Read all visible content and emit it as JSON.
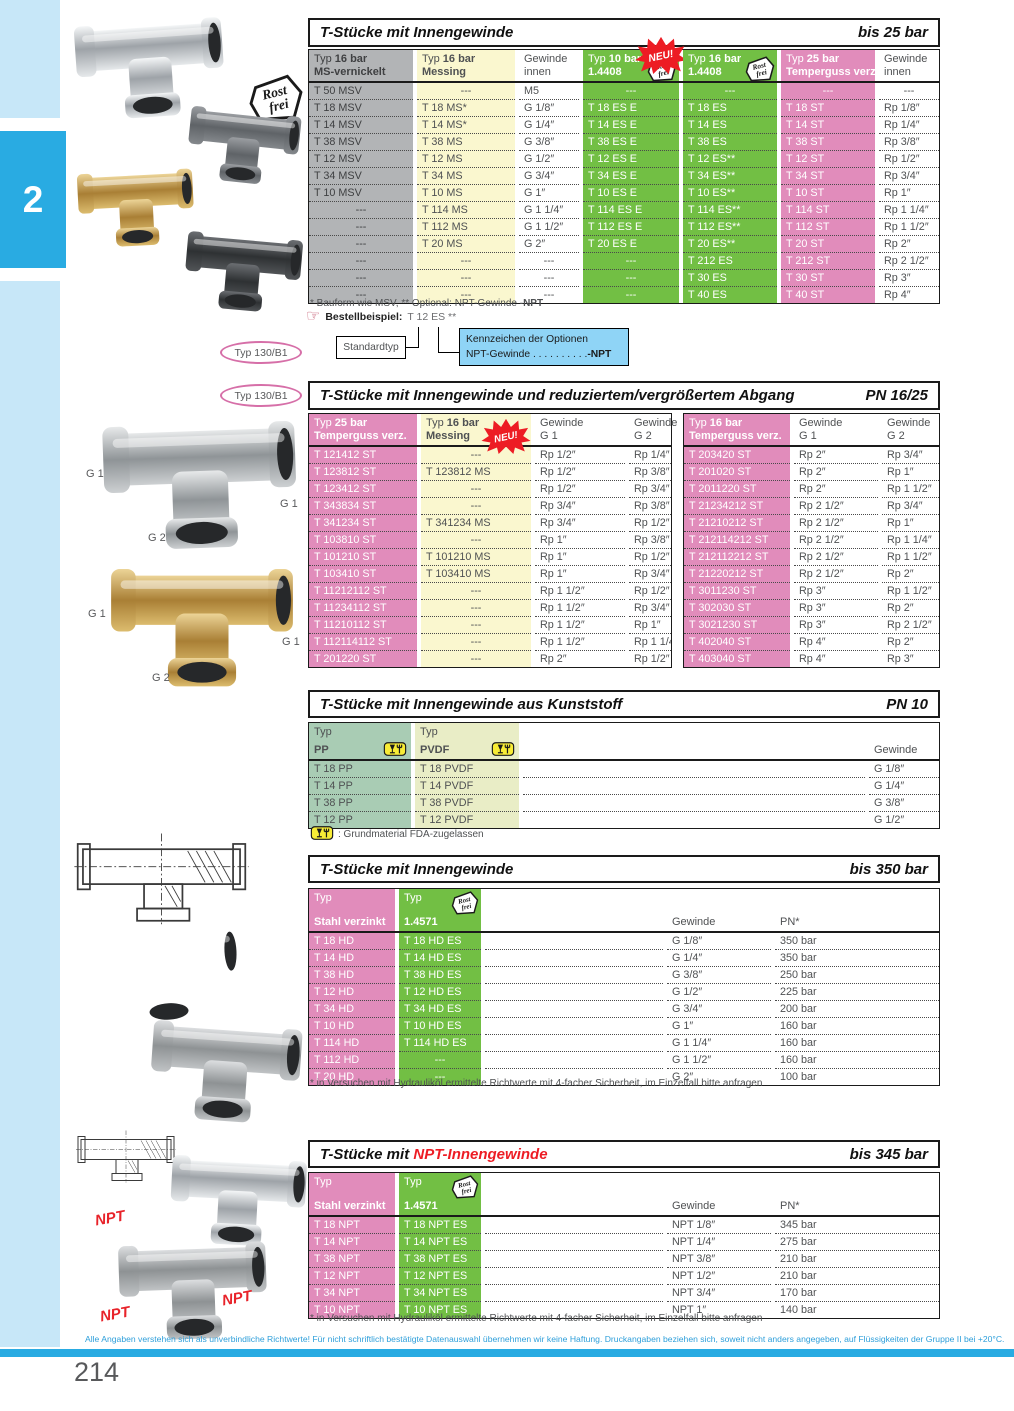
{
  "page": {
    "chapter_tab": "2",
    "number": "214",
    "disclaimer": "Alle Angaben verstehen sich als unverbindliche Richtwerte! Für nicht schriftlich bestätigte Datenauswahl übernehmen wir keine Haftung. Druckangaben beziehen sich, soweit nicht anders angegeben, auf Flüssigkeiten der Gruppe II bei +20°C."
  },
  "labels": {
    "typ_badge": "Typ 130/B1",
    "g1": "G 1",
    "g2": "G 2",
    "npt": "NPT",
    "rostfrei_1": "Rost",
    "rostfrei_2": "frei",
    "neu": "NEU!"
  },
  "sections": {
    "bis25": {
      "title": "T-Stücke mit Innengewinde",
      "pressure": "bis 25 bar",
      "columns": [
        {
          "t": "Typ",
          "r": "16 bar",
          "m": "MS-vernickelt"
        },
        {
          "t": "Typ",
          "r": "16 bar",
          "m": "Messing"
        },
        {
          "l1": "Gewinde",
          "l2": "innen"
        },
        {
          "t": "Typ",
          "r": "10 bar",
          "m": "1.4408"
        },
        {
          "t": "Typ",
          "r": "16 bar",
          "m": "1.4408"
        },
        {
          "t": "Typ",
          "r": "25 bar",
          "m": "Temperguss verz."
        },
        {
          "l1": "Gewinde",
          "l2": "innen"
        }
      ],
      "rows": [
        [
          "T 50 MSV",
          "---",
          "M5",
          "---",
          "---",
          "---",
          "---"
        ],
        [
          "T 18 MSV",
          "T 18 MS*",
          "G 1/8″",
          "T 18 ES E",
          "T 18 ES",
          "T 18 ST",
          "Rp 1/8″"
        ],
        [
          "T 14 MSV",
          "T 14 MS*",
          "G 1/4″",
          "T 14 ES E",
          "T 14 ES",
          "T 14 ST",
          "Rp 1/4″"
        ],
        [
          "T 38 MSV",
          "T 38 MS",
          "G 3/8″",
          "T 38 ES E",
          "T 38 ES",
          "T 38 ST",
          "Rp 3/8″"
        ],
        [
          "T 12 MSV",
          "T 12 MS",
          "G 1/2″",
          "T 12 ES E",
          "T 12 ES**",
          "T 12 ST",
          "Rp 1/2″"
        ],
        [
          "T 34 MSV",
          "T 34 MS",
          "G 3/4″",
          "T 34 ES E",
          "T 34 ES**",
          "T 34 ST",
          "Rp 3/4″"
        ],
        [
          "T 10 MSV",
          "T 10 MS",
          "G 1″",
          "T 10 ES E",
          "T 10 ES**",
          "T 10 ST",
          "Rp 1″"
        ],
        [
          "---",
          "T 114 MS",
          "G 1 1/4″",
          "T 114 ES E",
          "T 114 ES**",
          "T 114 ST",
          "Rp 1 1/4″"
        ],
        [
          "---",
          "T 112 MS",
          "G 1 1/2″",
          "T 112 ES E",
          "T 112 ES**",
          "T 112 ST",
          "Rp 1 1/2″"
        ],
        [
          "---",
          "T 20 MS",
          "G 2″",
          "T 20 ES E",
          "T 20 ES**",
          "T 20 ST",
          "Rp 2″"
        ],
        [
          "---",
          "---",
          "---",
          "---",
          "T 212 ES",
          "T 212 ST",
          "Rp 2 1/2″"
        ],
        [
          "---",
          "---",
          "---",
          "---",
          "T 30 ES",
          "T 30 ST",
          "Rp 3″"
        ],
        [
          "---",
          "---",
          "---",
          "---",
          "T 40 ES",
          "T 40 ST",
          "Rp 4″"
        ]
      ],
      "footnote_prefix": "* Bauform wie MSV, ** Optional: NPT-Gewinde ",
      "footnote_bold": "-NPT",
      "order": {
        "label": "Bestellbeispiel:",
        "code": "T 12 ES **",
        "standard": "Standardtyp",
        "options_title": "Kennzeichen der Optionen",
        "option_name": "NPT-Gewinde  . . . . . . . . . .",
        "option_value": "-NPT"
      }
    },
    "reduziert": {
      "title": "T-Stücke mit Innengewinde und reduziertem/vergrößertem Abgang",
      "pressure": "PN 16/25",
      "left": {
        "columns": [
          {
            "t": "Typ",
            "r": "25 bar",
            "m": "Temperguss verz."
          },
          {
            "t": "Typ",
            "r": "16 bar",
            "m": "Messing"
          },
          {
            "l1": "Gewinde",
            "l2": "G 1"
          },
          {
            "l1": "Gewinde",
            "l2": "G 2"
          }
        ],
        "rows": [
          [
            "T 121412 ST",
            "---",
            "Rp 1/2″",
            "Rp 1/4″"
          ],
          [
            "T 123812 ST",
            "T 123812 MS",
            "Rp 1/2″",
            "Rp 3/8″"
          ],
          [
            "T 123412 ST",
            "---",
            "Rp 1/2″",
            "Rp 3/4″"
          ],
          [
            "T 343834 ST",
            "---",
            "Rp 3/4″",
            "Rp 3/8″"
          ],
          [
            "T 341234 ST",
            "T 341234 MS",
            "Rp 3/4″",
            "Rp 1/2″"
          ],
          [
            "T 103810 ST",
            "---",
            "Rp 1″",
            "Rp 3/8″"
          ],
          [
            "T 101210 ST",
            "T 101210 MS",
            "Rp 1″",
            "Rp 1/2″"
          ],
          [
            "T 103410 ST",
            "T 103410 MS",
            "Rp 1″",
            "Rp 3/4″"
          ],
          [
            "T 11212112 ST",
            "---",
            "Rp 1 1/2″",
            "Rp 1/2″"
          ],
          [
            "T 11234112 ST",
            "---",
            "Rp 1 1/2″",
            "Rp 3/4″"
          ],
          [
            "T 11210112 ST",
            "---",
            "Rp 1 1/2″",
            "Rp 1″"
          ],
          [
            "T 112114112 ST",
            "---",
            "Rp 1 1/2″",
            "Rp 1 1/4″"
          ],
          [
            "T 201220 ST",
            "---",
            "Rp 2″",
            "Rp 1/2″"
          ]
        ]
      },
      "right": {
        "columns": [
          {
            "t": "Typ",
            "r": "16 bar",
            "m": "Temperguss verz."
          },
          {
            "l1": "Gewinde",
            "l2": "G 1"
          },
          {
            "l1": "Gewinde",
            "l2": "G 2"
          }
        ],
        "rows": [
          [
            "T 203420 ST",
            "Rp 2″",
            "Rp 3/4″"
          ],
          [
            "T 201020 ST",
            "Rp 2″",
            "Rp 1″"
          ],
          [
            "T 2011220 ST",
            "Rp 2″",
            "Rp 1 1/2″"
          ],
          [
            "T 21234212 ST",
            "Rp 2 1/2″",
            "Rp 3/4″"
          ],
          [
            "T 21210212 ST",
            "Rp 2 1/2″",
            "Rp 1″"
          ],
          [
            "T 212114212 ST",
            "Rp 2 1/2″",
            "Rp 1 1/4″"
          ],
          [
            "T 212112212 ST",
            "Rp 2 1/2″",
            "Rp 1 1/2″"
          ],
          [
            "T 21220212 ST",
            "Rp 2 1/2″",
            "Rp 2″"
          ],
          [
            "T 3011230 ST",
            "Rp 3″",
            "Rp 1 1/2″"
          ],
          [
            "T 302030 ST",
            "Rp 3″",
            "Rp 2″"
          ],
          [
            "T 3021230 ST",
            "Rp 3″",
            "Rp 2 1/2″"
          ],
          [
            "T 402040 ST",
            "Rp 4″",
            "Rp 2″"
          ],
          [
            "T 403040 ST",
            "Rp 4″",
            "Rp 3″"
          ]
        ]
      }
    },
    "kunststoff": {
      "title": "T-Stücke mit Innengewinde aus Kunststoff",
      "pressure": "PN 10",
      "columns": [
        {
          "t": "Typ",
          "m": "PP"
        },
        {
          "t": "Typ",
          "m": "PVDF"
        },
        {
          "spacer": ""
        },
        {
          "l1": "Gewinde"
        }
      ],
      "rows": [
        [
          "T 18 PP",
          "T 18 PVDF",
          "",
          "G 1/8″"
        ],
        [
          "T 14 PP",
          "T 14 PVDF",
          "",
          "G 1/4″"
        ],
        [
          "T 38 PP",
          "T 38 PVDF",
          "",
          "G 3/8″"
        ],
        [
          "T 12 PP",
          "T 12 PVDF",
          "",
          "G 1/2″"
        ]
      ],
      "footnote": ": Grundmaterial FDA-zugelassen"
    },
    "hd": {
      "title": "T-Stücke mit Innengewinde",
      "pressure": "bis 350 bar",
      "columns": [
        {
          "t": "Typ",
          "m": "Stahl verzinkt"
        },
        {
          "t": "Typ",
          "m": "1.4571"
        },
        {
          "spacer": ""
        },
        {
          "l1": "Gewinde"
        },
        {
          "l1": "PN*"
        }
      ],
      "rows": [
        [
          "T 18 HD",
          "T 18 HD ES",
          "",
          "G 1/8″",
          "350 bar"
        ],
        [
          "T 14 HD",
          "T 14 HD ES",
          "",
          "G 1/4″",
          "350 bar"
        ],
        [
          "T 38 HD",
          "T 38 HD ES",
          "",
          "G 3/8″",
          "250 bar"
        ],
        [
          "T 12 HD",
          "T 12 HD ES",
          "",
          "G 1/2″",
          "225 bar"
        ],
        [
          "T 34 HD",
          "T 34 HD ES",
          "",
          "G 3/4″",
          "200 bar"
        ],
        [
          "T 10 HD",
          "T 10 HD ES",
          "",
          "G 1″",
          "160 bar"
        ],
        [
          "T 114 HD",
          "T 114 HD ES",
          "",
          "G 1 1/4″",
          "160 bar"
        ],
        [
          "T 112 HD",
          "---",
          "",
          "G 1 1/2″",
          "160 bar"
        ],
        [
          "T 20 HD",
          "---",
          "",
          "G 2″",
          "100 bar"
        ]
      ],
      "footnote": "* in Versuchen mit Hydrauliköl ermittelte Richtwerte mit 4-facher Sicherheit, im Einzelfall bitte anfragen"
    },
    "npt": {
      "title_prefix": "T-Stücke mit ",
      "title_red": "NPT-Innengewinde",
      "pressure": "bis 345 bar",
      "columns": [
        {
          "t": "Typ",
          "m": "Stahl verzinkt"
        },
        {
          "t": "Typ",
          "m": "1.4571"
        },
        {
          "spacer": ""
        },
        {
          "l1": "Gewinde"
        },
        {
          "l1": "PN*"
        }
      ],
      "rows": [
        [
          "T 18 NPT",
          "T 18 NPT ES",
          "",
          "NPT 1/8″",
          "345 bar"
        ],
        [
          "T 14 NPT",
          "T 14 NPT ES",
          "",
          "NPT 1/4″",
          "275 bar"
        ],
        [
          "T 38 NPT",
          "T 38 NPT ES",
          "",
          "NPT 3/8″",
          "210 bar"
        ],
        [
          "T 12 NPT",
          "T 12 NPT ES",
          "",
          "NPT 1/2″",
          "210 bar"
        ],
        [
          "T 34 NPT",
          "T 34 NPT ES",
          "",
          "NPT 3/4″",
          "170 bar"
        ],
        [
          "T 10 NPT",
          "T 10 NPT ES",
          "",
          "NPT 1″",
          "140 bar"
        ]
      ],
      "footnote": "* in Versuchen mit Hydrauliköl ermittelte Richtwerte mit 4-facher Sicherheit, im Einzelfall bitte anfragen"
    }
  }
}
